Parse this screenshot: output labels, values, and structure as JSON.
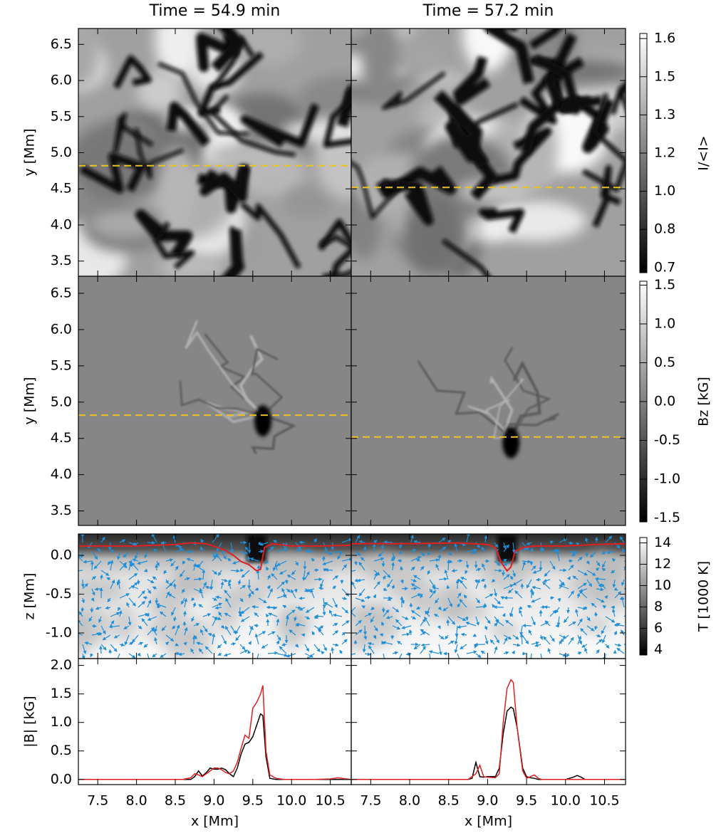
{
  "column_titles": [
    "Time = 54.9 min",
    "Time = 57.2 min"
  ],
  "chart_data": [
    {
      "type": "image",
      "ylabel": "y [Mm]",
      "ylim": [
        3.29,
        6.72
      ],
      "yticks": [
        {
          "value": 3.5,
          "label": "3.5"
        },
        {
          "value": 4,
          "label": "4.0"
        },
        4.5,
        {
          "value": 5,
          "label": "5.0"
        },
        5.5,
        {
          "value": 6,
          "label": "6.0"
        },
        6.5
      ],
      "colorbar": {
        "label": "I/<I>",
        "lim": [
          0.68,
          1.62
        ],
        "ticks": [
          {
            "value": 0.7,
            "label": "0.7"
          },
          {
            "value": 0.85,
            "label": "0.8"
          },
          {
            "value": 1.0,
            "label": "1.0"
          },
          {
            "value": 1.15,
            "label": "1.2"
          },
          {
            "value": 1.3,
            "label": "1.3"
          },
          {
            "value": 1.45,
            "label": "1.5"
          },
          {
            "value": 1.6,
            "label": "1.6"
          }
        ]
      },
      "cut_color": "#f0c020",
      "panels": [
        {
          "cut_y": 4.82
        },
        {
          "cut_y": 4.52
        }
      ]
    },
    {
      "type": "image",
      "ylabel": "y [Mm]",
      "ylim": [
        3.3,
        6.735
      ],
      "yticks": [
        3.5,
        {
          "value": 4,
          "label": "4.0"
        },
        4.5,
        {
          "value": 5,
          "label": "5.0"
        },
        5.5,
        {
          "value": 6,
          "label": "6.0"
        },
        6.5
      ],
      "colorbar": {
        "label": "Bz [kG]",
        "lim": [
          -1.55,
          1.55
        ],
        "ticks": [
          -1.5,
          {
            "value": -1,
            "label": "-1.0"
          },
          -0.5,
          {
            "value": 0,
            "label": "0.0"
          },
          0.5,
          {
            "value": 1,
            "label": "1.0"
          },
          1.5
        ]
      },
      "cut_color": "#f0c020",
      "panels": [
        {
          "cut_y": 4.82
        },
        {
          "cut_y": 4.52
        }
      ]
    },
    {
      "type": "quiver",
      "ylabel": "z [Mm]",
      "ylim": [
        -1.33,
        0.275
      ],
      "yticks": [
        {
          "value": -1,
          "label": "-1.0"
        },
        -0.5,
        {
          "value": 0,
          "label": "0.0"
        }
      ],
      "colorbar": {
        "label": "T [1000 K]",
        "lim": [
          3.5,
          14.5
        ],
        "ticks": [
          4,
          6,
          8,
          10,
          12,
          14
        ]
      },
      "arrow_color": "#1e8fd8",
      "panels": [
        {
          "line": {
            "color": "#e02020",
            "x": [
              7.25,
              8.0,
              8.5,
              8.7,
              8.9,
              9.05,
              9.15,
              9.25,
              9.35,
              9.45,
              9.55,
              9.6,
              9.65,
              9.75,
              10.0,
              10.4,
              10.77
            ],
            "values": [
              0.12,
              0.12,
              0.14,
              0.16,
              0.15,
              0.1,
              0.06,
              0.0,
              -0.08,
              -0.12,
              -0.2,
              -0.18,
              0.1,
              0.15,
              0.12,
              0.12,
              0.13
            ]
          }
        },
        {
          "line": {
            "color": "#e02020",
            "x": [
              7.25,
              8.0,
              8.6,
              9.0,
              9.1,
              9.18,
              9.25,
              9.3,
              9.35,
              9.45,
              9.6,
              10.0,
              10.4,
              10.77
            ],
            "values": [
              0.15,
              0.15,
              0.16,
              0.14,
              0.1,
              -0.1,
              -0.2,
              -0.15,
              0.05,
              0.1,
              0.12,
              0.12,
              0.14,
              0.15
            ]
          }
        }
      ]
    },
    {
      "type": "line",
      "ylabel": "|B| [kG]",
      "ylim": [
        -0.09,
        2.12
      ],
      "yticks": [
        {
          "value": 0,
          "label": "0.0"
        },
        0.5,
        {
          "value": 1,
          "label": "1.0"
        },
        1.5,
        {
          "value": 2,
          "label": "2.0"
        }
      ],
      "xlabel": "x [Mm]",
      "xlim": [
        7.25,
        10.77
      ],
      "xticks": [
        7.5,
        {
          "value": 8,
          "label": "8.0"
        },
        8.5,
        {
          "value": 9,
          "label": "9.0"
        },
        9.5,
        {
          "value": 10,
          "label": "10.0"
        },
        10.5
      ],
      "panels": [
        {
          "x": [
            7.25,
            8.6,
            8.7,
            8.75,
            8.8,
            8.85,
            8.9,
            8.95,
            9.0,
            9.05,
            9.1,
            9.15,
            9.2,
            9.25,
            9.3,
            9.35,
            9.4,
            9.45,
            9.5,
            9.55,
            9.6,
            9.63,
            9.67,
            9.72,
            9.8,
            9.9,
            10.0,
            10.1,
            10.2,
            10.3,
            10.5,
            10.6,
            10.7,
            10.77
          ],
          "series": [
            {
              "color": "#000000",
              "values": [
                0,
                0,
                0,
                0.05,
                0.15,
                0.06,
                0.12,
                0.2,
                0.18,
                0.18,
                0.2,
                0.17,
                0.1,
                0.05,
                0.2,
                0.45,
                0.62,
                0.65,
                0.75,
                0.95,
                1.15,
                1.12,
                0.4,
                0.02,
                0,
                0,
                0,
                0,
                0,
                0,
                0,
                0,
                0,
                0
              ]
            },
            {
              "color": "#e02020",
              "values": [
                0,
                0,
                0.03,
                0.1,
                0.08,
                0.05,
                0.1,
                0.15,
                0.2,
                0.2,
                0.17,
                0.12,
                0.1,
                0.15,
                0.3,
                0.55,
                0.78,
                0.72,
                1.25,
                1.35,
                1.5,
                1.65,
                0.5,
                0.08,
                0.02,
                0,
                0,
                0,
                0,
                0,
                0.01,
                0.03,
                0.01,
                0
              ]
            }
          ]
        },
        {
          "x": [
            7.25,
            8.75,
            8.8,
            8.85,
            8.9,
            8.95,
            9.0,
            9.1,
            9.15,
            9.2,
            9.25,
            9.3,
            9.33,
            9.38,
            9.45,
            9.5,
            9.55,
            9.6,
            9.65,
            9.7,
            10.0,
            10.1,
            10.15,
            10.2,
            10.25,
            10.77
          ],
          "series": [
            {
              "color": "#000000",
              "values": [
                0,
                0,
                0.02,
                0.3,
                0.05,
                0.04,
                0.05,
                0.05,
                0.2,
                0.8,
                1.2,
                1.27,
                1.24,
                0.9,
                0.2,
                0.05,
                0.03,
                0.02,
                0,
                0,
                0,
                0.04,
                0.07,
                0.04,
                0,
                0
              ]
            },
            {
              "color": "#e02020",
              "values": [
                0,
                0,
                0.05,
                0.1,
                0.25,
                0.05,
                0.04,
                0.03,
                0.1,
                1.0,
                1.6,
                1.75,
                1.7,
                0.9,
                0.15,
                0.02,
                0.05,
                0.08,
                0.02,
                0,
                0,
                0,
                0,
                0,
                0,
                0
              ]
            }
          ]
        }
      ]
    }
  ]
}
